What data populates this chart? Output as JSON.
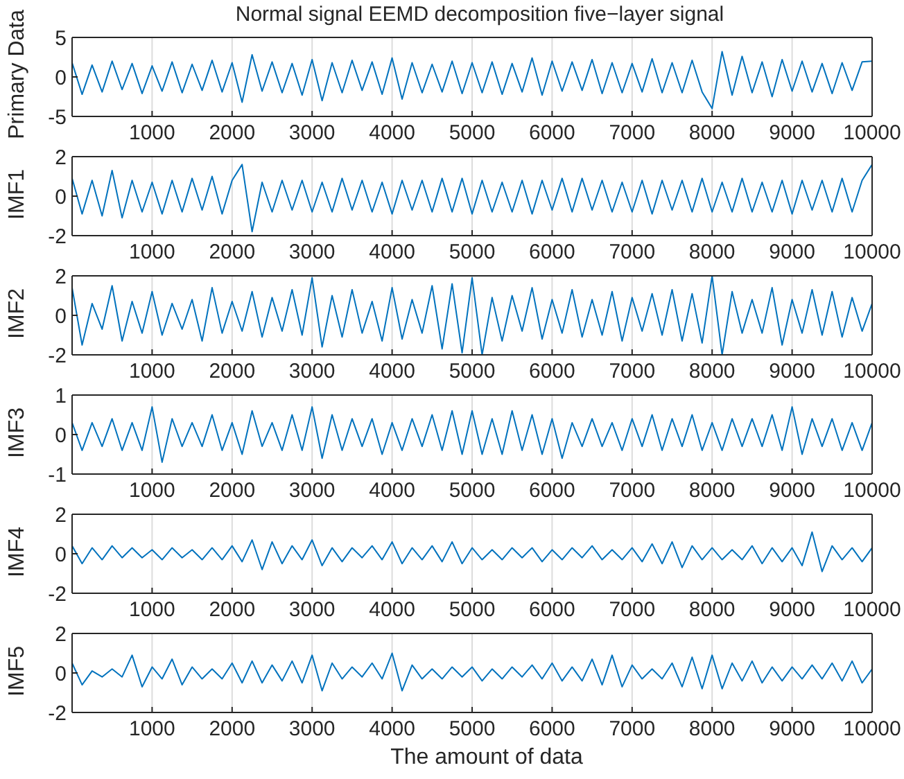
{
  "chart_data": [
    {
      "type": "line",
      "title": "Normal signal EEMD decomposition five−layer signal",
      "ylabel": "Primary Data",
      "xlim": [
        0,
        10000
      ],
      "xticks": [
        1000,
        2000,
        3000,
        4000,
        5000,
        6000,
        7000,
        8000,
        9000,
        10000
      ],
      "ylim": [
        -5,
        5
      ],
      "yticks": [
        -5,
        0,
        5
      ],
      "grid": "x",
      "legend": false,
      "marker": "none",
      "x": [
        0,
        125,
        250,
        375,
        500,
        625,
        750,
        875,
        1000,
        1125,
        1250,
        1375,
        1500,
        1625,
        1750,
        1875,
        2000,
        2125,
        2250,
        2375,
        2500,
        2625,
        2750,
        2875,
        3000,
        3125,
        3250,
        3375,
        3500,
        3625,
        3750,
        3875,
        4000,
        4125,
        4250,
        4375,
        4500,
        4625,
        4750,
        4875,
        5000,
        5125,
        5250,
        5375,
        5500,
        5625,
        5750,
        5875,
        6000,
        6125,
        6250,
        6375,
        6500,
        6625,
        6750,
        6875,
        7000,
        7125,
        7250,
        7375,
        7500,
        7625,
        7750,
        7875,
        8000,
        8125,
        8250,
        8375,
        8500,
        8625,
        8750,
        8875,
        9000,
        9125,
        9250,
        9375,
        9500,
        9625,
        9750,
        9875,
        10000
      ],
      "series": [
        {
          "color": "#0072bd",
          "values": [
            1.8,
            -2.2,
            1.5,
            -1.9,
            2.0,
            -1.6,
            1.7,
            -2.1,
            1.4,
            -1.8,
            1.9,
            -2.0,
            1.6,
            -1.7,
            2.1,
            -1.9,
            1.8,
            -3.2,
            2.8,
            -1.8,
            1.9,
            -2.0,
            1.7,
            -2.3,
            2.2,
            -3.0,
            1.8,
            -2.0,
            2.1,
            -1.7,
            1.9,
            -2.2,
            2.4,
            -2.8,
            1.8,
            -2.0,
            1.6,
            -1.9,
            2.0,
            -2.1,
            1.8,
            -2.0,
            1.9,
            -2.2,
            1.7,
            -1.9,
            2.4,
            -2.3,
            2.0,
            -1.8,
            1.9,
            -1.7,
            2.2,
            -2.1,
            1.8,
            -2.0,
            1.7,
            -1.9,
            2.3,
            -2.0,
            1.8,
            -2.0,
            2.1,
            -1.9,
            -4.0,
            3.2,
            -2.3,
            2.6,
            -2.0,
            1.9,
            -2.5,
            2.2,
            -1.8,
            2.0,
            -1.9,
            1.7,
            -2.1,
            1.8,
            -1.7,
            1.9,
            2.0
          ]
        }
      ]
    },
    {
      "type": "line",
      "ylabel": "IMF1",
      "xlim": [
        0,
        10000
      ],
      "xticks": [
        1000,
        2000,
        3000,
        4000,
        5000,
        6000,
        7000,
        8000,
        9000,
        10000
      ],
      "ylim": [
        -2,
        2
      ],
      "yticks": [
        -2,
        0,
        2
      ],
      "grid": "x",
      "legend": false,
      "marker": "none",
      "x": [
        0,
        125,
        250,
        375,
        500,
        625,
        750,
        875,
        1000,
        1125,
        1250,
        1375,
        1500,
        1625,
        1750,
        1875,
        2000,
        2125,
        2250,
        2375,
        2500,
        2625,
        2750,
        2875,
        3000,
        3125,
        3250,
        3375,
        3500,
        3625,
        3750,
        3875,
        4000,
        4125,
        4250,
        4375,
        4500,
        4625,
        4750,
        4875,
        5000,
        5125,
        5250,
        5375,
        5500,
        5625,
        5750,
        5875,
        6000,
        6125,
        6250,
        6375,
        6500,
        6625,
        6750,
        6875,
        7000,
        7125,
        7250,
        7375,
        7500,
        7625,
        7750,
        7875,
        8000,
        8125,
        8250,
        8375,
        8500,
        8625,
        8750,
        8875,
        9000,
        9125,
        9250,
        9375,
        9500,
        9625,
        9750,
        9875,
        10000
      ],
      "series": [
        {
          "color": "#0072bd",
          "values": [
            0.9,
            -0.9,
            0.8,
            -1.0,
            1.3,
            -1.1,
            0.8,
            -0.8,
            0.7,
            -0.9,
            0.8,
            -0.8,
            0.9,
            -0.7,
            1.0,
            -0.9,
            0.8,
            1.6,
            -1.8,
            0.7,
            -0.8,
            0.8,
            -0.7,
            0.8,
            -0.8,
            0.7,
            -0.8,
            0.9,
            -0.7,
            0.8,
            -0.8,
            0.7,
            -0.9,
            0.8,
            -0.7,
            0.8,
            -0.8,
            0.9,
            -0.8,
            0.9,
            -0.9,
            0.8,
            -0.8,
            0.7,
            -0.8,
            0.8,
            -0.9,
            0.8,
            -0.7,
            0.9,
            -0.8,
            0.9,
            -0.7,
            0.8,
            -0.8,
            0.7,
            -0.8,
            0.8,
            -0.9,
            0.8,
            -0.7,
            0.8,
            -0.8,
            0.9,
            -0.8,
            0.7,
            -0.8,
            0.9,
            -0.8,
            0.7,
            -0.8,
            0.8,
            -0.9,
            0.8,
            -0.7,
            0.8,
            -0.8,
            0.9,
            -0.8,
            0.8,
            1.6
          ]
        }
      ]
    },
    {
      "type": "line",
      "ylabel": "IMF2",
      "xlim": [
        0,
        10000
      ],
      "xticks": [
        1000,
        2000,
        3000,
        4000,
        5000,
        6000,
        7000,
        8000,
        9000,
        10000
      ],
      "ylim": [
        -2,
        2
      ],
      "yticks": [
        -2,
        0,
        2
      ],
      "grid": "x",
      "legend": false,
      "marker": "none",
      "x": [
        0,
        125,
        250,
        375,
        500,
        625,
        750,
        875,
        1000,
        1125,
        1250,
        1375,
        1500,
        1625,
        1750,
        1875,
        2000,
        2125,
        2250,
        2375,
        2500,
        2625,
        2750,
        2875,
        3000,
        3125,
        3250,
        3375,
        3500,
        3625,
        3750,
        3875,
        4000,
        4125,
        4250,
        4375,
        4500,
        4625,
        4750,
        4875,
        5000,
        5125,
        5250,
        5375,
        5500,
        5625,
        5750,
        5875,
        6000,
        6125,
        6250,
        6375,
        6500,
        6625,
        6750,
        6875,
        7000,
        7125,
        7250,
        7375,
        7500,
        7625,
        7750,
        7875,
        8000,
        8125,
        8250,
        8375,
        8500,
        8625,
        8750,
        8875,
        9000,
        9125,
        9250,
        9375,
        9500,
        9625,
        9750,
        9875,
        10000
      ],
      "series": [
        {
          "color": "#0072bd",
          "values": [
            1.4,
            -1.5,
            0.6,
            -0.7,
            1.5,
            -1.3,
            0.7,
            -0.9,
            1.2,
            -1.0,
            0.6,
            -0.7,
            0.8,
            -1.3,
            1.4,
            -0.9,
            0.7,
            -0.8,
            1.2,
            -1.1,
            0.9,
            -0.8,
            1.3,
            -1.0,
            1.9,
            -1.6,
            1.0,
            -1.1,
            1.3,
            -0.9,
            0.7,
            -1.3,
            1.4,
            -1.2,
            0.8,
            -0.9,
            1.5,
            -1.7,
            1.6,
            -1.9,
            1.9,
            -2.0,
            0.9,
            -1.3,
            1.0,
            -0.8,
            1.4,
            -1.2,
            0.8,
            -0.9,
            1.3,
            -1.1,
            0.8,
            -1.0,
            1.2,
            -1.3,
            0.9,
            -0.8,
            1.1,
            -1.0,
            1.3,
            -1.3,
            1.1,
            -1.4,
            2.0,
            -2.0,
            1.2,
            -0.9,
            0.8,
            -0.9,
            1.4,
            -1.5,
            0.8,
            -0.9,
            1.3,
            -1.0,
            1.2,
            -1.1,
            0.9,
            -0.8,
            0.6
          ]
        }
      ]
    },
    {
      "type": "line",
      "ylabel": "IMF3",
      "xlim": [
        0,
        10000
      ],
      "xticks": [
        1000,
        2000,
        3000,
        4000,
        5000,
        6000,
        7000,
        8000,
        9000,
        10000
      ],
      "ylim": [
        -1,
        1
      ],
      "yticks": [
        -1,
        0,
        1
      ],
      "grid": "x",
      "legend": false,
      "marker": "none",
      "x": [
        0,
        125,
        250,
        375,
        500,
        625,
        750,
        875,
        1000,
        1125,
        1250,
        1375,
        1500,
        1625,
        1750,
        1875,
        2000,
        2125,
        2250,
        2375,
        2500,
        2625,
        2750,
        2875,
        3000,
        3125,
        3250,
        3375,
        3500,
        3625,
        3750,
        3875,
        4000,
        4125,
        4250,
        4375,
        4500,
        4625,
        4750,
        4875,
        5000,
        5125,
        5250,
        5375,
        5500,
        5625,
        5750,
        5875,
        6000,
        6125,
        6250,
        6375,
        6500,
        6625,
        6750,
        6875,
        7000,
        7125,
        7250,
        7375,
        7500,
        7625,
        7750,
        7875,
        8000,
        8125,
        8250,
        8375,
        8500,
        8625,
        8750,
        8875,
        9000,
        9125,
        9250,
        9375,
        9500,
        9625,
        9750,
        9875,
        10000
      ],
      "series": [
        {
          "color": "#0072bd",
          "values": [
            0.3,
            -0.4,
            0.3,
            -0.3,
            0.4,
            -0.4,
            0.3,
            -0.4,
            0.7,
            -0.7,
            0.4,
            -0.3,
            0.3,
            -0.3,
            0.5,
            -0.4,
            0.3,
            -0.5,
            0.6,
            -0.3,
            0.3,
            -0.4,
            0.5,
            -0.4,
            0.7,
            -0.6,
            0.5,
            -0.4,
            0.4,
            -0.3,
            0.4,
            -0.5,
            0.3,
            -0.4,
            0.4,
            -0.3,
            0.5,
            -0.4,
            0.6,
            -0.5,
            0.6,
            -0.5,
            0.4,
            -0.5,
            0.6,
            -0.4,
            0.5,
            -0.5,
            0.4,
            -0.6,
            0.3,
            -0.3,
            0.4,
            -0.3,
            0.3,
            -0.4,
            0.4,
            -0.3,
            0.5,
            -0.4,
            0.4,
            -0.3,
            0.5,
            -0.4,
            0.3,
            -0.4,
            0.4,
            -0.3,
            0.4,
            -0.3,
            0.5,
            -0.4,
            0.7,
            -0.5,
            0.4,
            -0.3,
            0.4,
            -0.4,
            0.3,
            -0.4,
            0.3
          ]
        }
      ]
    },
    {
      "type": "line",
      "ylabel": "IMF4",
      "xlim": [
        0,
        10000
      ],
      "xticks": [
        1000,
        2000,
        3000,
        4000,
        5000,
        6000,
        7000,
        8000,
        9000,
        10000
      ],
      "ylim": [
        -2,
        2
      ],
      "yticks": [
        -2,
        0,
        2
      ],
      "grid": "x",
      "legend": false,
      "marker": "none",
      "x": [
        0,
        125,
        250,
        375,
        500,
        625,
        750,
        875,
        1000,
        1125,
        1250,
        1375,
        1500,
        1625,
        1750,
        1875,
        2000,
        2125,
        2250,
        2375,
        2500,
        2625,
        2750,
        2875,
        3000,
        3125,
        3250,
        3375,
        3500,
        3625,
        3750,
        3875,
        4000,
        4125,
        4250,
        4375,
        4500,
        4625,
        4750,
        4875,
        5000,
        5125,
        5250,
        5375,
        5500,
        5625,
        5750,
        5875,
        6000,
        6125,
        6250,
        6375,
        6500,
        6625,
        6750,
        6875,
        7000,
        7125,
        7250,
        7375,
        7500,
        7625,
        7750,
        7875,
        8000,
        8125,
        8250,
        8375,
        8500,
        8625,
        8750,
        8875,
        9000,
        9125,
        9250,
        9375,
        9500,
        9625,
        9750,
        9875,
        10000
      ],
      "series": [
        {
          "color": "#0072bd",
          "values": [
            0.4,
            -0.5,
            0.3,
            -0.3,
            0.4,
            -0.2,
            0.3,
            -0.2,
            0.2,
            -0.3,
            0.3,
            -0.2,
            0.2,
            -0.3,
            0.3,
            -0.3,
            0.4,
            -0.4,
            0.7,
            -0.8,
            0.6,
            -0.5,
            0.4,
            -0.3,
            0.7,
            -0.6,
            0.3,
            -0.4,
            0.3,
            -0.2,
            0.4,
            -0.3,
            0.6,
            -0.5,
            0.3,
            -0.3,
            0.4,
            -0.4,
            0.6,
            -0.5,
            0.3,
            -0.3,
            0.2,
            -0.3,
            0.3,
            -0.2,
            0.3,
            -0.4,
            0.2,
            -0.3,
            0.3,
            -0.2,
            0.4,
            -0.3,
            0.2,
            -0.3,
            0.3,
            -0.4,
            0.5,
            -0.5,
            0.6,
            -0.7,
            0.4,
            -0.3,
            0.3,
            -0.3,
            0.2,
            -0.3,
            0.4,
            -0.5,
            0.3,
            -0.4,
            0.3,
            -0.6,
            1.1,
            -0.9,
            0.4,
            -0.3,
            0.3,
            -0.4,
            0.3
          ]
        }
      ]
    },
    {
      "type": "line",
      "ylabel": "IMF5",
      "xlabel": "The amount of data",
      "xlim": [
        0,
        10000
      ],
      "xticks": [
        1000,
        2000,
        3000,
        4000,
        5000,
        6000,
        7000,
        8000,
        9000,
        10000
      ],
      "ylim": [
        -2,
        2
      ],
      "yticks": [
        -2,
        0,
        2
      ],
      "grid": "x",
      "legend": false,
      "marker": "none",
      "x": [
        0,
        125,
        250,
        375,
        500,
        625,
        750,
        875,
        1000,
        1125,
        1250,
        1375,
        1500,
        1625,
        1750,
        1875,
        2000,
        2125,
        2250,
        2375,
        2500,
        2625,
        2750,
        2875,
        3000,
        3125,
        3250,
        3375,
        3500,
        3625,
        3750,
        3875,
        4000,
        4125,
        4250,
        4375,
        4500,
        4625,
        4750,
        4875,
        5000,
        5125,
        5250,
        5375,
        5500,
        5625,
        5750,
        5875,
        6000,
        6125,
        6250,
        6375,
        6500,
        6625,
        6750,
        6875,
        7000,
        7125,
        7250,
        7375,
        7500,
        7625,
        7750,
        7875,
        8000,
        8125,
        8250,
        8375,
        8500,
        8625,
        8750,
        8875,
        9000,
        9125,
        9250,
        9375,
        9500,
        9625,
        9750,
        9875,
        10000
      ],
      "series": [
        {
          "color": "#0072bd",
          "values": [
            0.5,
            -0.6,
            0.1,
            -0.2,
            0.2,
            -0.2,
            0.9,
            -0.7,
            0.3,
            -0.3,
            0.7,
            -0.6,
            0.3,
            -0.3,
            0.2,
            -0.3,
            0.5,
            -0.5,
            0.6,
            -0.5,
            0.4,
            -0.4,
            0.6,
            -0.5,
            0.9,
            -0.9,
            0.5,
            -0.3,
            0.3,
            -0.2,
            0.5,
            -0.3,
            1.0,
            -0.9,
            0.4,
            -0.3,
            0.2,
            -0.3,
            0.3,
            -0.2,
            0.3,
            -0.4,
            0.2,
            -0.3,
            0.3,
            -0.2,
            0.4,
            -0.3,
            0.5,
            -0.4,
            0.3,
            -0.4,
            0.7,
            -0.6,
            0.9,
            -0.7,
            0.4,
            -0.3,
            0.2,
            -0.3,
            0.5,
            -0.7,
            0.8,
            -0.8,
            0.9,
            -0.8,
            0.5,
            -0.4,
            0.6,
            -0.5,
            0.3,
            -0.4,
            0.3,
            -0.3,
            0.4,
            -0.3,
            0.5,
            -0.4,
            0.6,
            -0.5,
            0.2
          ]
        }
      ]
    }
  ]
}
